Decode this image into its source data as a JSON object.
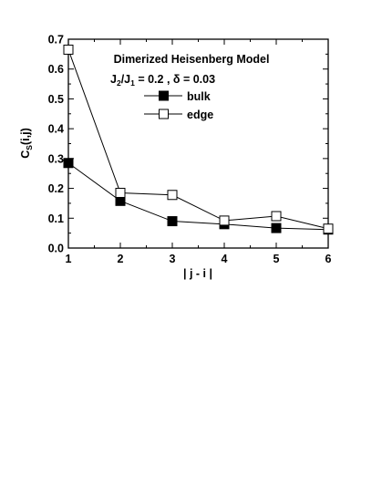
{
  "chart_data": {
    "type": "line",
    "title": "Dimerized Heisenberg Model",
    "params": {
      "j_sym": "J",
      "j2_sub": "2",
      "slash": "/",
      "j1_sub": "1",
      "j_eq": " = 0.2 , ",
      "delta": "δ = 0.03"
    },
    "xlabel": "| j - i |",
    "ylabel": {
      "main": "C",
      "sub": "S",
      "rest": "(i,j)"
    },
    "xlim": [
      1,
      6
    ],
    "ylim": [
      0,
      0.7
    ],
    "xticks": [
      "1",
      "2",
      "3",
      "4",
      "5",
      "6"
    ],
    "yticks": [
      "0.0",
      "0.1",
      "0.2",
      "0.3",
      "0.4",
      "0.5",
      "0.6",
      "0.7"
    ],
    "x": [
      1,
      2,
      3,
      4,
      5,
      6
    ],
    "series": [
      {
        "name": "bulk",
        "marker": "filled-square",
        "values": [
          0.285,
          0.158,
          0.09,
          0.08,
          0.067,
          0.062
        ]
      },
      {
        "name": "edge",
        "marker": "open-square",
        "values": [
          0.665,
          0.185,
          0.178,
          0.092,
          0.107,
          0.065
        ]
      }
    ],
    "legend_position": "upper-right",
    "grid": false
  }
}
